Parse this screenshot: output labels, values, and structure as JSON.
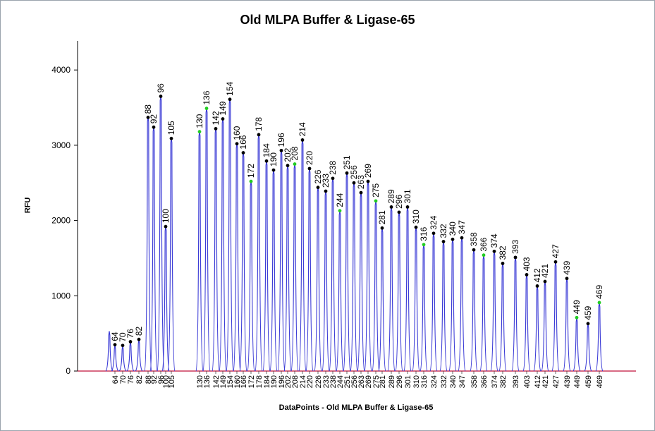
{
  "chart_data": {
    "type": "line",
    "title": "Old MLPA Buffer & Ligase-65",
    "xlabel": "DataPoints - Old MLPA Buffer & Ligase-65",
    "ylabel": "RFU",
    "ylim": [
      0,
      4400
    ],
    "yticks": [
      0,
      1000,
      2000,
      3000,
      4000
    ],
    "grid": false,
    "colors": {
      "trace": "#3b3bd6",
      "baseline": "#c0103a",
      "marker": "#000000",
      "marker_highlight": "#22cc22"
    },
    "x_tick_labels": [
      "64",
      "70",
      "76",
      "82",
      "88",
      "92",
      "96",
      "100",
      "105",
      "130",
      "136",
      "142",
      "149",
      "154",
      "160",
      "166",
      "172",
      "178",
      "184",
      "190",
      "196",
      "202",
      "208",
      "214",
      "220",
      "226",
      "233",
      "238",
      "244",
      "251",
      "256",
      "263",
      "269",
      "275",
      "281",
      "289",
      "296",
      "301",
      "310",
      "316",
      "324",
      "332",
      "340",
      "347",
      "358",
      "366",
      "374",
      "382",
      "393",
      "403",
      "412",
      "421",
      "427",
      "439",
      "449",
      "459",
      "469"
    ],
    "unlabeled_peak": {
      "x": 58,
      "y": 530
    },
    "peaks": [
      {
        "label": "64",
        "value": 350,
        "highlight": false
      },
      {
        "label": "70",
        "value": 340,
        "highlight": false
      },
      {
        "label": "76",
        "value": 390,
        "highlight": false
      },
      {
        "label": "82",
        "value": 420,
        "highlight": false
      },
      {
        "label": "88",
        "value": 3370,
        "highlight": false
      },
      {
        "label": "92",
        "value": 3240,
        "highlight": false
      },
      {
        "label": "96",
        "value": 3650,
        "highlight": false
      },
      {
        "label": "100",
        "value": 1920,
        "highlight": false
      },
      {
        "label": "105",
        "value": 3090,
        "highlight": false
      },
      {
        "label": "130",
        "value": 3180,
        "highlight": true
      },
      {
        "label": "136",
        "value": 3490,
        "highlight": true
      },
      {
        "label": "142",
        "value": 3220,
        "highlight": false
      },
      {
        "label": "149",
        "value": 3350,
        "highlight": false
      },
      {
        "label": "154",
        "value": 3610,
        "highlight": false
      },
      {
        "label": "160",
        "value": 3020,
        "highlight": false
      },
      {
        "label": "166",
        "value": 2900,
        "highlight": false
      },
      {
        "label": "172",
        "value": 2520,
        "highlight": true
      },
      {
        "label": "178",
        "value": 3140,
        "highlight": false
      },
      {
        "label": "184",
        "value": 2790,
        "highlight": false
      },
      {
        "label": "190",
        "value": 2670,
        "highlight": false
      },
      {
        "label": "196",
        "value": 2930,
        "highlight": false
      },
      {
        "label": "202",
        "value": 2730,
        "highlight": false
      },
      {
        "label": "208",
        "value": 2750,
        "highlight": true
      },
      {
        "label": "214",
        "value": 3070,
        "highlight": false
      },
      {
        "label": "220",
        "value": 2690,
        "highlight": false
      },
      {
        "label": "226",
        "value": 2440,
        "highlight": false
      },
      {
        "label": "233",
        "value": 2390,
        "highlight": false
      },
      {
        "label": "238",
        "value": 2560,
        "highlight": false
      },
      {
        "label": "244",
        "value": 2130,
        "highlight": true
      },
      {
        "label": "251",
        "value": 2630,
        "highlight": false
      },
      {
        "label": "256",
        "value": 2500,
        "highlight": false
      },
      {
        "label": "263",
        "value": 2370,
        "highlight": false
      },
      {
        "label": "269",
        "value": 2520,
        "highlight": false
      },
      {
        "label": "275",
        "value": 2260,
        "highlight": true
      },
      {
        "label": "281",
        "value": 1900,
        "highlight": false
      },
      {
        "label": "289",
        "value": 2180,
        "highlight": false
      },
      {
        "label": "296",
        "value": 2110,
        "highlight": false
      },
      {
        "label": "301",
        "value": 2180,
        "highlight": false
      },
      {
        "label": "310",
        "value": 1910,
        "highlight": false
      },
      {
        "label": "316",
        "value": 1680,
        "highlight": true
      },
      {
        "label": "324",
        "value": 1830,
        "highlight": false
      },
      {
        "label": "332",
        "value": 1720,
        "highlight": false
      },
      {
        "label": "340",
        "value": 1750,
        "highlight": false
      },
      {
        "label": "347",
        "value": 1770,
        "highlight": false
      },
      {
        "label": "358",
        "value": 1610,
        "highlight": false
      },
      {
        "label": "366",
        "value": 1540,
        "highlight": true
      },
      {
        "label": "374",
        "value": 1590,
        "highlight": false
      },
      {
        "label": "382",
        "value": 1430,
        "highlight": false
      },
      {
        "label": "393",
        "value": 1510,
        "highlight": false
      },
      {
        "label": "403",
        "value": 1280,
        "highlight": false
      },
      {
        "label": "412",
        "value": 1130,
        "highlight": false
      },
      {
        "label": "421",
        "value": 1190,
        "highlight": false
      },
      {
        "label": "427",
        "value": 1450,
        "highlight": false
      },
      {
        "label": "439",
        "value": 1230,
        "highlight": false
      },
      {
        "label": "449",
        "value": 710,
        "highlight": true
      },
      {
        "label": "459",
        "value": 630,
        "highlight": false
      },
      {
        "label": "469",
        "value": 910,
        "highlight": true
      }
    ]
  }
}
